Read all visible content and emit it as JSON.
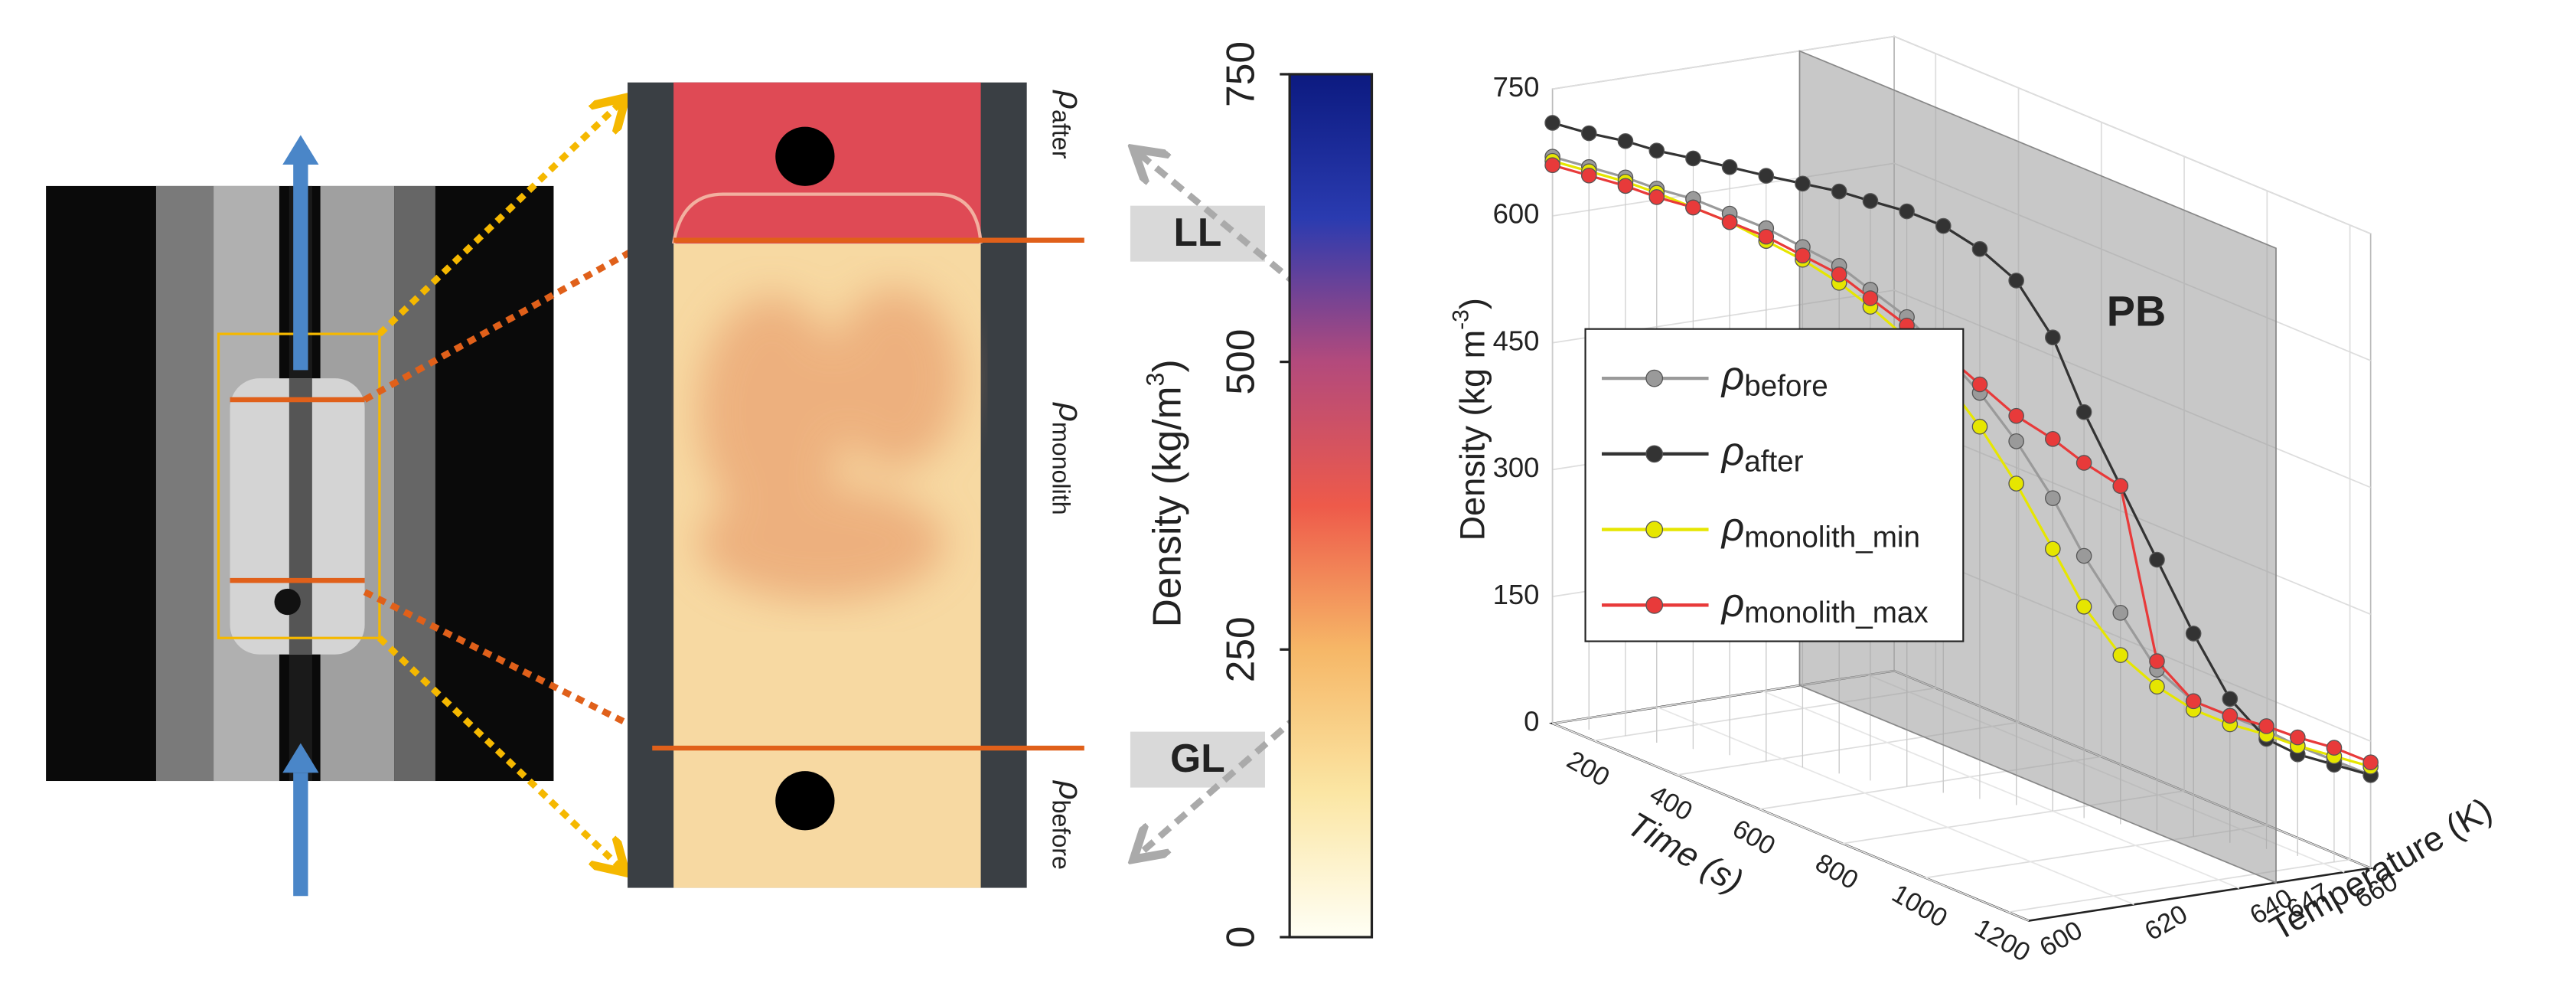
{
  "annotations": {
    "label_ll": "LL",
    "label_gl": "GL",
    "rho_top": {
      "symbol": "ρ",
      "sub": "after"
    },
    "rho_mid": {
      "symbol": "ρ",
      "sub": "monolith"
    },
    "rho_bottom": {
      "symbol": "ρ",
      "sub": "before"
    }
  },
  "chart_data": [
    {
      "type": "colorbar",
      "label": "Density (kg/m",
      "label_sup": "3",
      "label_end": ")",
      "ylim": [
        0,
        750
      ],
      "yticks": [
        0,
        250,
        500,
        750
      ],
      "colors": [
        "#fffff5",
        "#fbe6a4",
        "#f6b767",
        "#ee5a4a",
        "#b34a7c",
        "#2a3bb0",
        "#0c1a80"
      ]
    },
    {
      "type": "line3d",
      "annotation": "PB",
      "plane_temperature": 647,
      "xlabel": "Time (s)",
      "zlabel": "Temperature (K)",
      "ylabel": "Density (kg m",
      "ylabel_sup": "-3",
      "ylabel_end": ")",
      "xlim": [
        100,
        1250
      ],
      "zlim": [
        600,
        665
      ],
      "ylim": [
        0,
        750
      ],
      "xticks": [
        200,
        400,
        600,
        800,
        1000,
        1200
      ],
      "zticks": [
        600,
        620,
        640,
        647,
        660
      ],
      "yticks": [
        0,
        150,
        300,
        450,
        600,
        750
      ],
      "x": [
        100,
        150,
        200,
        250,
        300,
        350,
        400,
        450,
        500,
        550,
        600,
        650,
        700,
        750,
        800,
        850,
        900,
        950,
        1000,
        1050,
        1100,
        1150,
        1200,
        1250
      ],
      "temperature": [
        600,
        603,
        606,
        608,
        611,
        614,
        617,
        620,
        623,
        625,
        628,
        631,
        634,
        637,
        640,
        642,
        645,
        648,
        651,
        654,
        657,
        659,
        662,
        665
      ],
      "series": [
        {
          "name": "ρ",
          "sub": "before",
          "color": "#9a9a9a",
          "values": [
            670,
            665,
            660,
            655,
            650,
            640,
            630,
            615,
            600,
            580,
            555,
            520,
            480,
            430,
            370,
            310,
            250,
            190,
            160,
            150,
            140,
            130,
            120,
            110
          ]
        },
        {
          "name": "ρ",
          "sub": "after",
          "color": "#333333",
          "values": [
            710,
            705,
            703,
            700,
            698,
            695,
            692,
            690,
            688,
            685,
            680,
            670,
            650,
            620,
            560,
            480,
            400,
            320,
            240,
            170,
            130,
            120,
            115,
            110
          ]
        },
        {
          "name": "ρ",
          "sub": "monolith_min",
          "color": "#e6e600",
          "values": [
            665,
            660,
            655,
            650,
            640,
            630,
            615,
            600,
            580,
            560,
            530,
            490,
            440,
            380,
            310,
            250,
            200,
            170,
            150,
            140,
            135,
            130,
            125,
            120
          ]
        },
        {
          "name": "ρ",
          "sub": "monolith_max",
          "color": "#e83a3a",
          "values": [
            660,
            655,
            650,
            645,
            640,
            630,
            620,
            605,
            590,
            570,
            545,
            520,
            490,
            460,
            440,
            420,
            400,
            200,
            160,
            150,
            145,
            140,
            135,
            125
          ]
        }
      ]
    }
  ]
}
